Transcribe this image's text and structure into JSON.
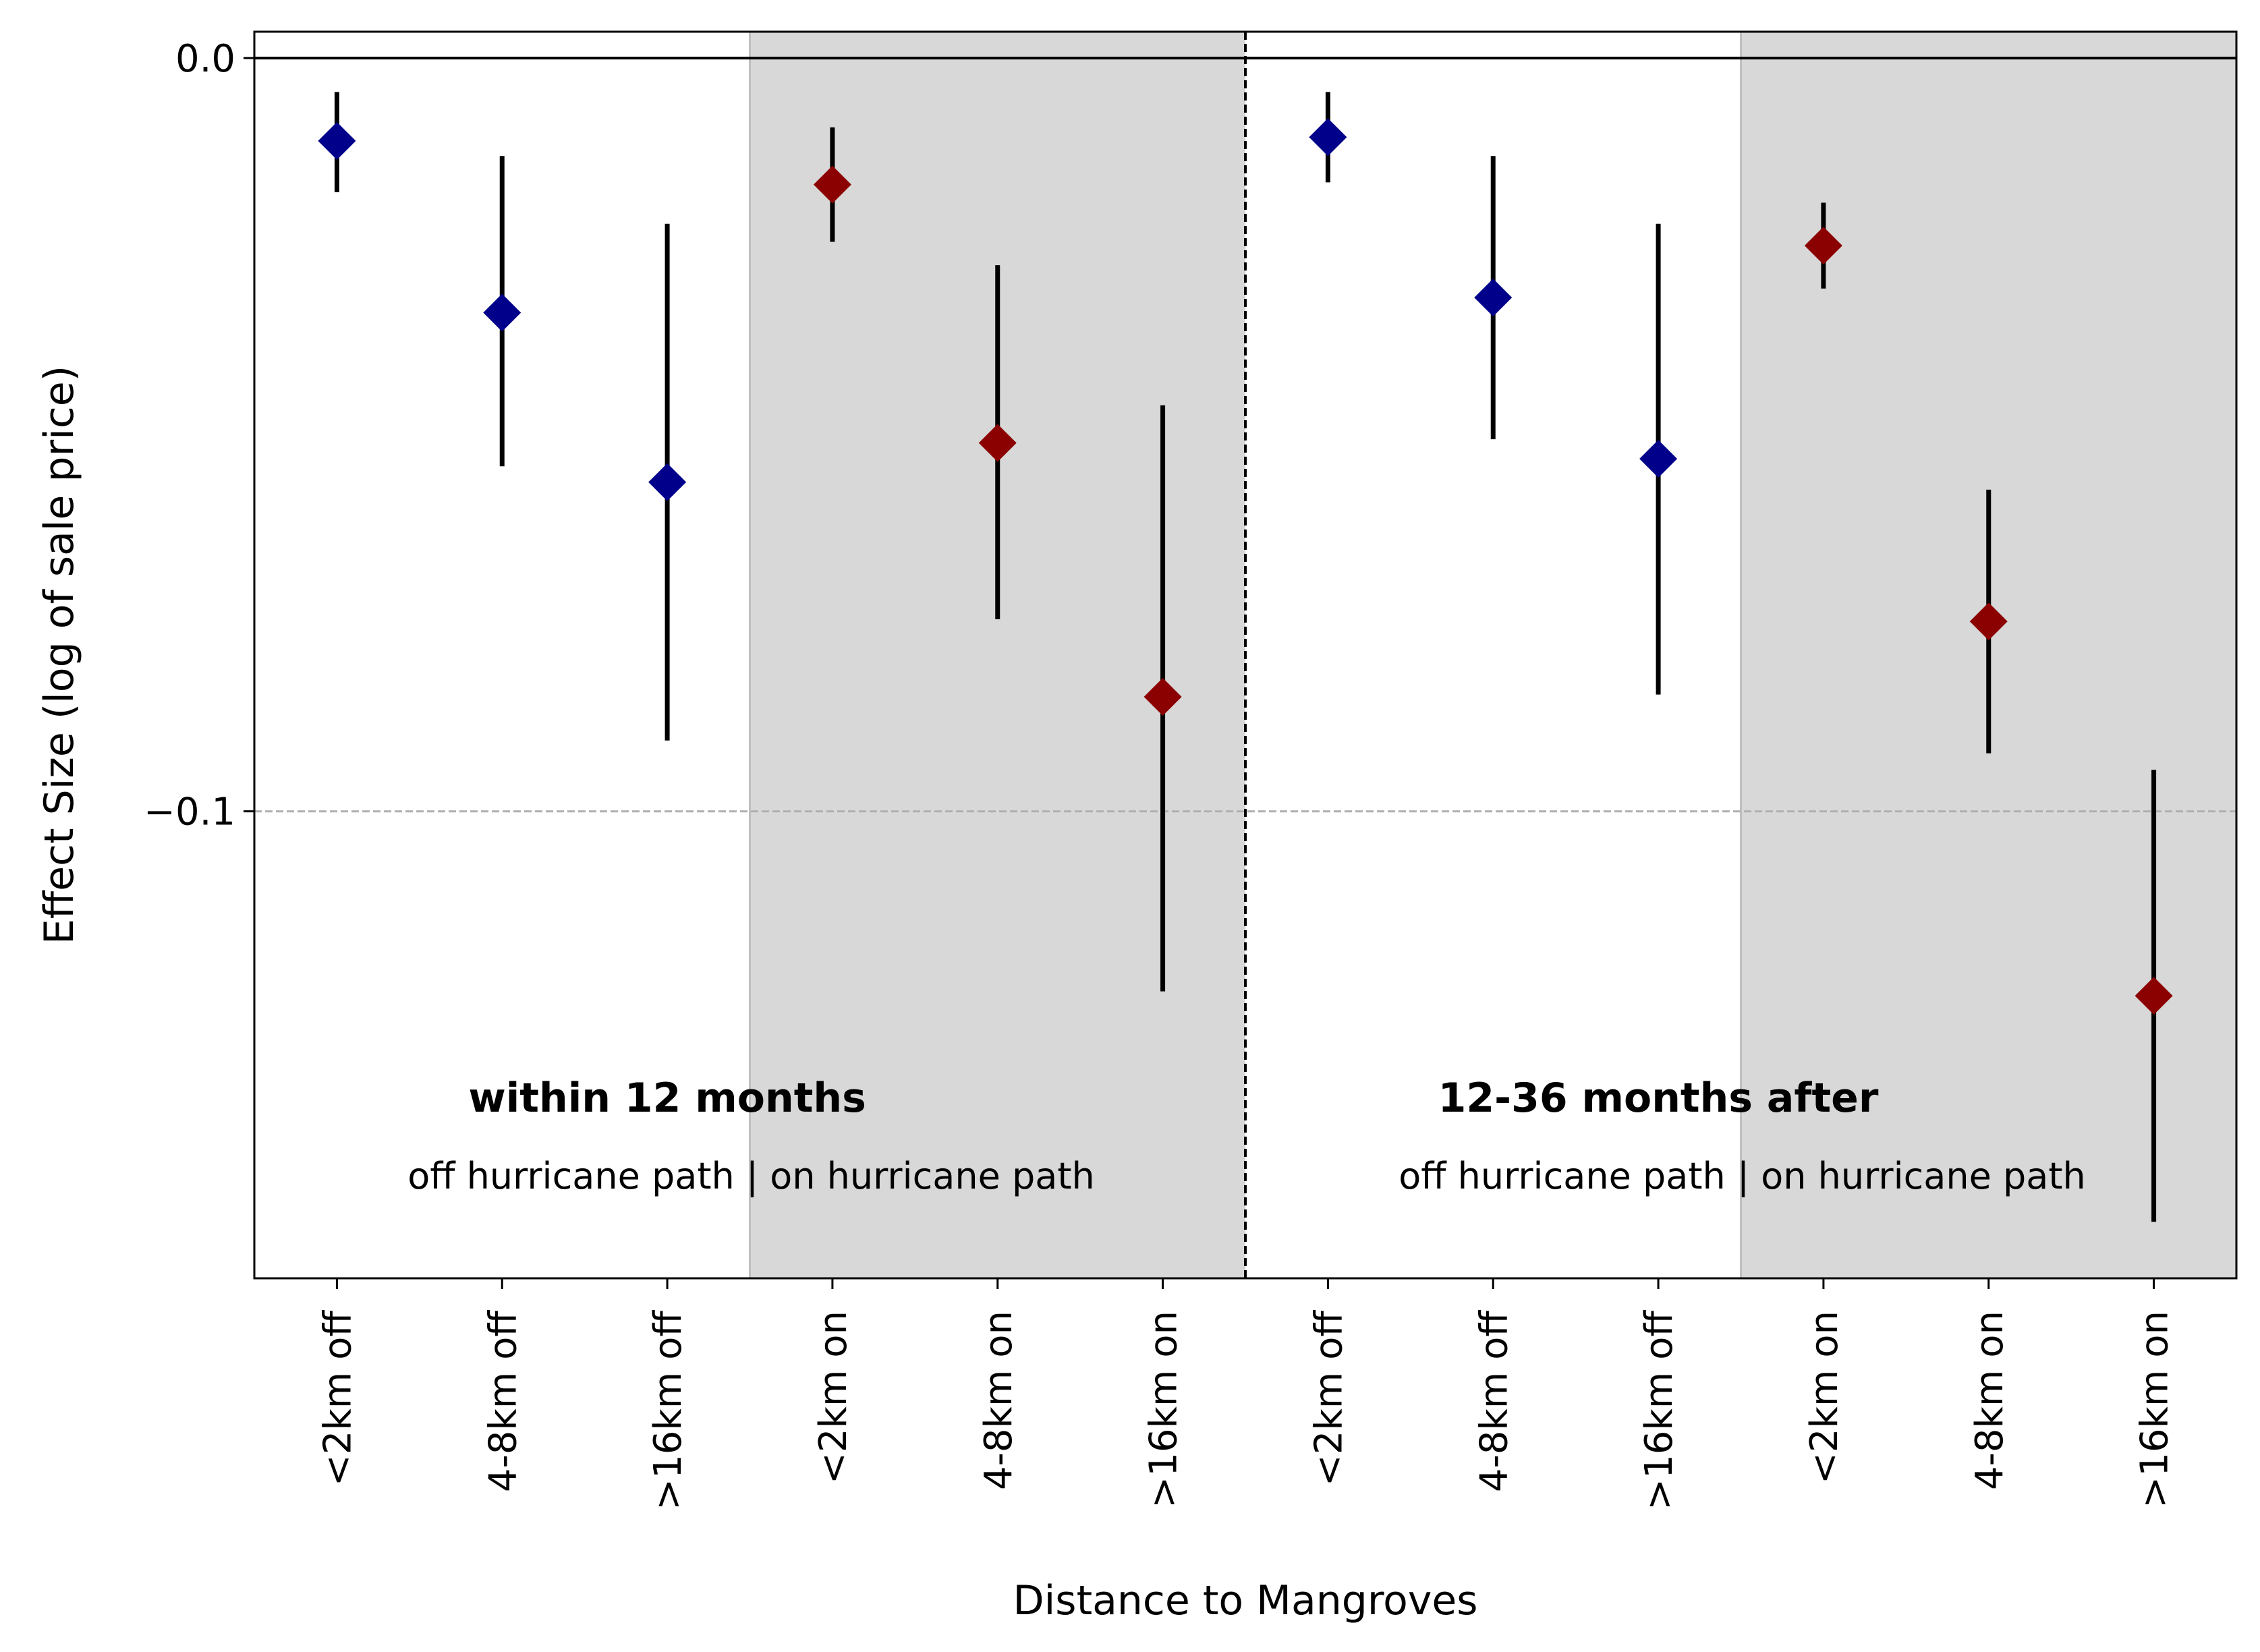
{
  "chart_data": {
    "type": "scatter",
    "xlabel": "Distance to Mangroves",
    "ylabel": "Effect Size (log of sale price)",
    "ylim": [
      -0.162,
      0.0035
    ],
    "yticks": [
      {
        "value": 0.0,
        "label": "0.0"
      },
      {
        "value": -0.1,
        "label": "−0.1"
      }
    ],
    "reference_lines": [
      {
        "value": 0.0,
        "style": "solid",
        "color": "#000000"
      },
      {
        "value": -0.1,
        "style": "dashed",
        "color": "#b0b0b0"
      }
    ],
    "categories": [
      "<2km off",
      "4-8km off",
      ">16km off",
      "<2km on",
      "4-8km on",
      ">16km on",
      "<2km off",
      "4-8km off",
      ">16km off",
      "<2km on",
      "4-8km on",
      ">16km on"
    ],
    "series": [
      {
        "name": "off hurricane path",
        "color": "#00008b",
        "marker": "diamond",
        "points": [
          {
            "x": 0,
            "y": -0.011,
            "ci": [
              -0.0045,
              -0.0178
            ]
          },
          {
            "x": 1,
            "y": -0.0338,
            "ci": [
              -0.013,
              -0.0542
            ]
          },
          {
            "x": 2,
            "y": -0.0563,
            "ci": [
              -0.022,
              -0.0906
            ]
          },
          {
            "x": 6,
            "y": -0.0105,
            "ci": [
              -0.0045,
              -0.0165
            ]
          },
          {
            "x": 7,
            "y": -0.0318,
            "ci": [
              -0.013,
              -0.0506
            ]
          },
          {
            "x": 8,
            "y": -0.0532,
            "ci": [
              -0.022,
              -0.0845
            ]
          }
        ]
      },
      {
        "name": "on hurricane path",
        "color": "#8b0000",
        "marker": "diamond",
        "points": [
          {
            "x": 3,
            "y": -0.0168,
            "ci": [
              -0.0092,
              -0.0244
            ]
          },
          {
            "x": 4,
            "y": -0.0511,
            "ci": [
              -0.0275,
              -0.0745
            ]
          },
          {
            "x": 5,
            "y": -0.0848,
            "ci": [
              -0.0461,
              -0.1239
            ]
          },
          {
            "x": 9,
            "y": -0.0249,
            "ci": [
              -0.0192,
              -0.0306
            ]
          },
          {
            "x": 10,
            "y": -0.0748,
            "ci": [
              -0.0573,
              -0.0923
            ]
          },
          {
            "x": 11,
            "y": -0.1245,
            "ci": [
              -0.0945,
              -0.1545
            ]
          }
        ]
      }
    ],
    "errorbar_color": "#000000",
    "shaded_regions": [
      {
        "x_from": 2.5,
        "x_to": 5.5,
        "color": "#d8d8d8"
      },
      {
        "x_from": 8.5,
        "x_to": 11.5,
        "color": "#d8d8d8"
      }
    ],
    "divider": {
      "x": 5.5,
      "style": "dashed"
    },
    "panels": [
      {
        "title": "within 12 months",
        "subtitle": "off hurricane path  |   on hurricane path"
      },
      {
        "title": "12-36 months after",
        "subtitle": "off hurricane path  |   on hurricane path"
      }
    ],
    "grid": false,
    "legend": "none"
  }
}
